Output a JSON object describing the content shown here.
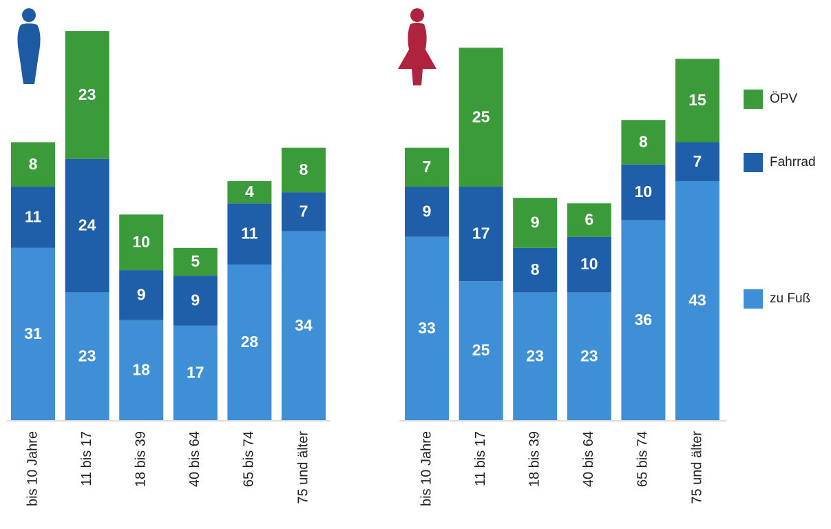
{
  "chart_data": [
    {
      "type": "stacked_bar",
      "categories": [
        "bis 10 Jahre",
        "11 bis 17",
        "18 bis 39",
        "40 bis 64",
        "65 bis 74",
        "75 und älter"
      ],
      "series": [
        {
          "name": "zu Fuß",
          "color": "#3e8fd6",
          "values": [
            31,
            23,
            18,
            17,
            28,
            34
          ]
        },
        {
          "name": "Fahrrad",
          "color": "#1f5ea8",
          "values": [
            11,
            24,
            9,
            9,
            11,
            7
          ]
        },
        {
          "name": "ÖPV",
          "color": "#3b9b3b",
          "values": [
            8,
            23,
            10,
            5,
            4,
            8
          ]
        }
      ]
    },
    {
      "type": "stacked_bar",
      "categories": [
        "bis 10 Jahre",
        "11 bis 17",
        "18 bis 39",
        "40 bis 64",
        "65 bis 74",
        "75 und älter"
      ],
      "series": [
        {
          "name": "zu Fuß",
          "color": "#3e8fd6",
          "values": [
            33,
            25,
            23,
            23,
            36,
            43
          ]
        },
        {
          "name": "Fahrrad",
          "color": "#1f5ea8",
          "values": [
            9,
            17,
            8,
            10,
            10,
            7
          ]
        },
        {
          "name": "ÖPV",
          "color": "#3b9b3b",
          "values": [
            7,
            25,
            9,
            6,
            8,
            15
          ]
        }
      ]
    }
  ]
}
